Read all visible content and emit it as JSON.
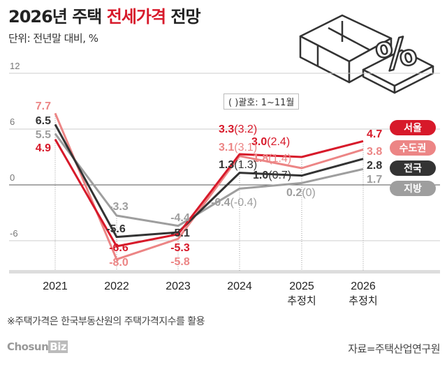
{
  "title": {
    "part1": "2026년 주택 ",
    "highlight": "전세가격",
    "part2": " 전망"
  },
  "unit": "단위: 전년말 대비, %",
  "bracket_note": "( )괄호: 1~11월",
  "footnote": "※주택가격은 한국부동산원의 주택가격지수를 활용",
  "logo": {
    "text": "Chosun",
    "biz": "Biz"
  },
  "source": "자료=주택산업연구원",
  "chart_data": {
    "type": "line",
    "x": [
      "2021",
      "2022",
      "2023",
      "2024",
      "2025",
      "2026"
    ],
    "x_sublabels": [
      "",
      "",
      "",
      "",
      "추정치",
      "추정치"
    ],
    "yticks": [
      "12",
      "6",
      "0",
      "-6"
    ],
    "ylim": [
      -8.7,
      12
    ],
    "grid": true,
    "legend": "right",
    "series": [
      {
        "name": "서울",
        "color": "#d7192a",
        "values": [
          4.9,
          -6.6,
          -5.3,
          3.3,
          3.0,
          4.7
        ],
        "labels": [
          "4.9",
          "-6.6",
          "-5.3",
          "3.3",
          "3.0",
          "4.7"
        ],
        "jan_nov": [
          "",
          "",
          "",
          "(3.2)",
          "(2.4)",
          ""
        ]
      },
      {
        "name": "수도권",
        "color": "#ec8585",
        "values": [
          7.7,
          -8.0,
          -5.8,
          3.1,
          1.8,
          3.8
        ],
        "labels": [
          "7.7",
          "-8.0",
          "-5.8",
          "3.1",
          "1.8",
          "3.8"
        ],
        "jan_nov": [
          "",
          "",
          "",
          "(3.1)",
          "(1.4)",
          ""
        ]
      },
      {
        "name": "전국",
        "color": "#333333",
        "values": [
          6.5,
          -5.6,
          -5.1,
          1.3,
          1.0,
          2.8
        ],
        "labels": [
          "6.5",
          "-5.6",
          "-5.1",
          "1.3",
          "1.0",
          "2.8"
        ],
        "jan_nov": [
          "",
          "",
          "",
          "(1.3)",
          "(0.7)",
          ""
        ]
      },
      {
        "name": "지방",
        "color": "#9e9e9e",
        "values": [
          5.5,
          -3.3,
          -4.4,
          -0.4,
          0.2,
          1.7
        ],
        "labels": [
          "5.5",
          "-3.3",
          "-4.4",
          "-0.4",
          "0.2",
          "1.7"
        ],
        "jan_nov": [
          "",
          "",
          "",
          "(-0.4)",
          "(0)",
          ""
        ]
      }
    ]
  }
}
